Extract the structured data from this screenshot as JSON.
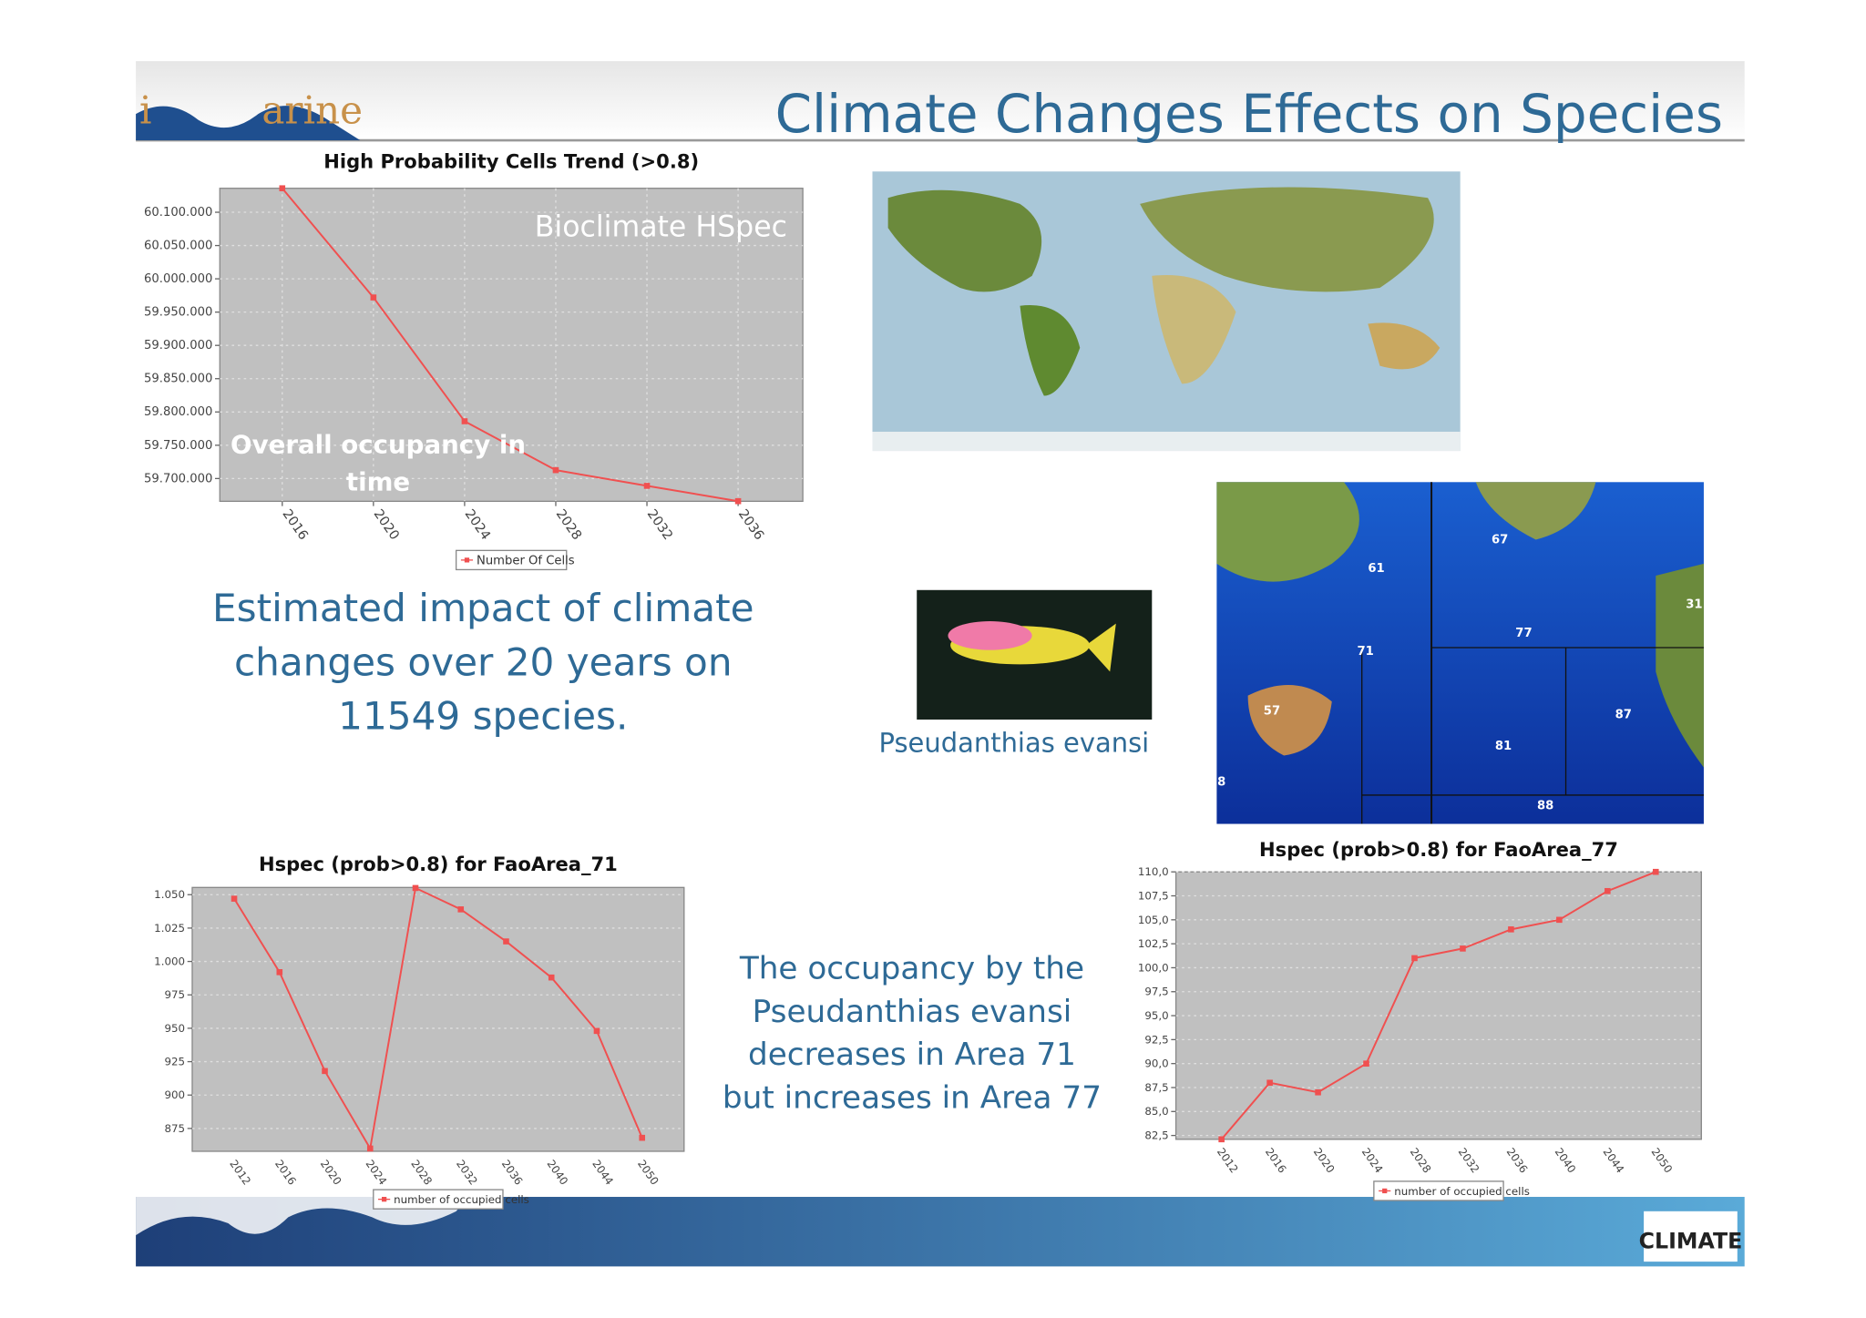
{
  "header": {
    "title": "Climate Changes Effects on Species",
    "logo_parts": [
      "i",
      "arine"
    ],
    "footer_logo": "CLIMATE"
  },
  "chart_data": [
    {
      "type": "line",
      "title": "High Probability Cells Trend (>0.8)",
      "x": [
        2016,
        2020,
        2024,
        2028,
        2032,
        2036
      ],
      "xlim": [
        2013.26,
        2038.84
      ],
      "xticks": [
        2016,
        2020,
        2024,
        2028,
        2032,
        2036
      ],
      "series": [
        {
          "name": "Number Of Cells",
          "color": "#f05050",
          "values": [
            60136000,
            59972000,
            59786000,
            59712600,
            59689000,
            59666000
          ]
        }
      ],
      "ylim": [
        59665800,
        60136000
      ],
      "yticks": [
        {
          "value": 59700000,
          "label": "59.700.000"
        },
        {
          "value": 59750000,
          "label": "59.750.000"
        },
        {
          "value": 59800000,
          "label": "59.800.000"
        },
        {
          "value": 59850000,
          "label": "59.850.000"
        },
        {
          "value": 59900000,
          "label": "59.900.000"
        },
        {
          "value": 59950000,
          "label": "59.950.000"
        },
        {
          "value": 60000000,
          "label": "60.000.000"
        },
        {
          "value": 60050000,
          "label": "60.050.000"
        },
        {
          "value": 60100000,
          "label": "60.100.000"
        }
      ],
      "grid": true,
      "annotations": [
        "Bioclimate HSpec",
        "Overall occupancy in time"
      ]
    },
    {
      "type": "line",
      "title": "Hspec (prob>0.8) for FaoArea_71",
      "categories": [
        "2012",
        "2016",
        "2020",
        "2024",
        "2028",
        "2032",
        "2036",
        "2040",
        "2044",
        "2050"
      ],
      "series": [
        {
          "name": "number of occupied cells",
          "color": "#f05050",
          "values": [
            1047,
            992,
            918,
            860,
            1055,
            1039,
            1015,
            988,
            948,
            868
          ]
        }
      ],
      "ylim": [
        857.9,
        1055.4
      ],
      "yticks": [
        875,
        900,
        925,
        950,
        975,
        {
          "value": 1000,
          "label": "1.000"
        },
        {
          "value": 1025,
          "label": "1.025"
        },
        {
          "value": 1050,
          "label": "1.050"
        }
      ],
      "grid": true
    },
    {
      "type": "line",
      "title": "Hspec (prob>0.8) for FaoArea_77",
      "categories": [
        "2012",
        "2016",
        "2020",
        "2024",
        "2028",
        "2032",
        "2036",
        "2040",
        "2044",
        "2050"
      ],
      "series": [
        {
          "name": "number of occupied cells",
          "color": "#f05050",
          "values": [
            82.1,
            88.0,
            87.0,
            90.0,
            101.0,
            102.0,
            104.0,
            105.0,
            108.0,
            110.0
          ]
        }
      ],
      "ylim": [
        82.1,
        110
      ],
      "yticks": [
        {
          "value": 82.5,
          "label": "82,5"
        },
        {
          "value": 85,
          "label": "85,0"
        },
        {
          "value": 87.5,
          "label": "87,5"
        },
        {
          "value": 90,
          "label": "90,0"
        },
        {
          "value": 92.5,
          "label": "92,5"
        },
        {
          "value": 95,
          "label": "95,0"
        },
        {
          "value": 97.5,
          "label": "97,5"
        },
        {
          "value": 100,
          "label": "100,0"
        },
        {
          "value": 102.5,
          "label": "102,5"
        },
        {
          "value": 105,
          "label": "105,0"
        },
        {
          "value": 107.5,
          "label": "107,5"
        },
        {
          "value": 110,
          "label": "110,0"
        }
      ],
      "grid": true
    }
  ],
  "texts": {
    "impact": "Estimated impact of climate changes over 20 years on 11549 species.",
    "species": "Pseudanthias evansi",
    "occupancy": "The occupancy by the Pseudanthias evansi decreases in Area 71 but increases in Area 77"
  },
  "map_labels": [
    "61",
    "67",
    "77",
    "71",
    "57",
    "81",
    "87",
    "88",
    "31",
    "8"
  ]
}
